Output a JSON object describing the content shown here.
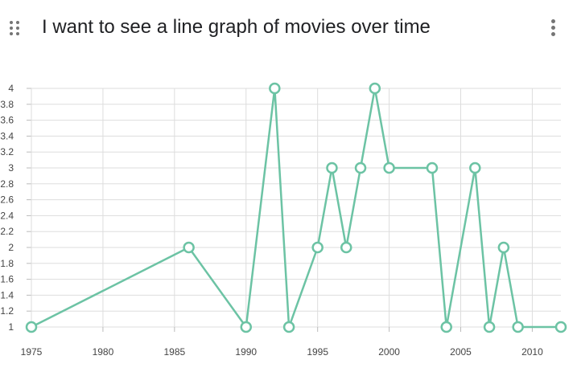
{
  "header": {
    "title": "I want to see a line graph of movies over time",
    "drag_icon": "drag-handle-icon",
    "menu_icon": "more-vert-icon"
  },
  "chart_data": {
    "type": "line",
    "title": "I want to see a line graph of movies over time",
    "xlabel": "",
    "ylabel": "",
    "xlim": [
      1975,
      2012
    ],
    "ylim": [
      1,
      4
    ],
    "x_ticks": [
      1975,
      1980,
      1985,
      1990,
      1995,
      2000,
      2005,
      2010
    ],
    "y_ticks": [
      1,
      1.2,
      1.4,
      1.6,
      1.8,
      2,
      2.2,
      2.4,
      2.6,
      2.8,
      3,
      3.2,
      3.4,
      3.6,
      3.8,
      4
    ],
    "grid": true,
    "legend": "none",
    "series": [
      {
        "color": "#6cc3a4",
        "x": [
          1975,
          1986,
          1990,
          1992,
          1993,
          1995,
          1996,
          1997,
          1998,
          1999,
          2000,
          2003,
          2004,
          2006,
          2007,
          2008,
          2009,
          2012
        ],
        "values": [
          1,
          2,
          1,
          4,
          1,
          2,
          3,
          2,
          3,
          4,
          3,
          3,
          1,
          3,
          1,
          2,
          1,
          1
        ]
      }
    ]
  }
}
